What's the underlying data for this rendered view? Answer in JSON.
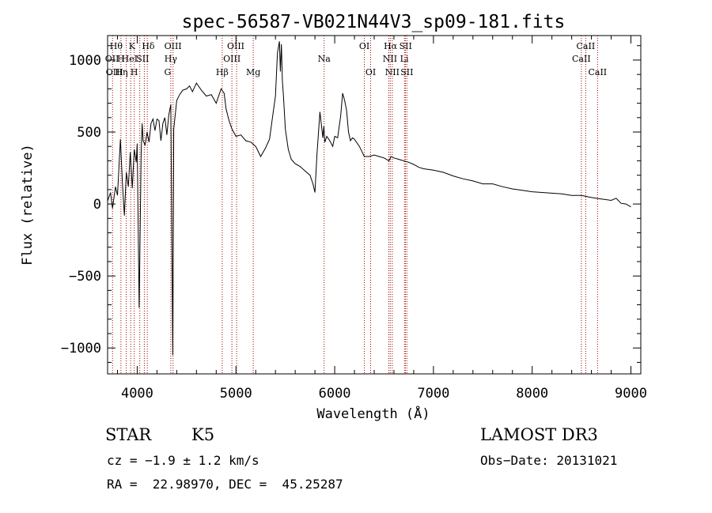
{
  "chart_data": {
    "type": "line",
    "title": "spec-56587-VB021N44V3_sp09-181.fits",
    "xlabel": "Wavelength (Å)",
    "ylabel": "Flux (relative)",
    "xlim": [
      3700,
      9100
    ],
    "ylim": [
      -1180,
      1170
    ],
    "x_ticks": [
      4000,
      5000,
      6000,
      7000,
      8000,
      9000
    ],
    "x_tick_labels": [
      "4000",
      "5000",
      "6000",
      "7000",
      "8000",
      "9000"
    ],
    "y_ticks": [
      -1000,
      -500,
      0,
      500,
      1000
    ],
    "y_tick_labels": [
      "−1000",
      "−500",
      "0",
      "500",
      "1000"
    ],
    "x_minor_step": 200,
    "y_minor_step": 100,
    "series": [
      {
        "name": "flux",
        "x": [
          3700,
          3730,
          3750,
          3780,
          3800,
          3830,
          3850,
          3870,
          3890,
          3910,
          3930,
          3950,
          3970,
          3990,
          4000,
          4020,
          4040,
          4050,
          4060,
          4080,
          4100,
          4120,
          4140,
          4160,
          4180,
          4200,
          4220,
          4240,
          4260,
          4280,
          4300,
          4320,
          4340,
          4360,
          4370,
          4400,
          4430,
          4460,
          4500,
          4530,
          4560,
          4600,
          4650,
          4700,
          4750,
          4800,
          4850,
          4880,
          4900,
          4930,
          4960,
          5000,
          5050,
          5100,
          5150,
          5200,
          5250,
          5300,
          5340,
          5370,
          5400,
          5420,
          5440,
          5450,
          5460,
          5470,
          5480,
          5500,
          5530,
          5560,
          5600,
          5650,
          5700,
          5750,
          5780,
          5800,
          5820,
          5850,
          5880,
          5890,
          5900,
          5920,
          5950,
          5980,
          6000,
          6030,
          6060,
          6080,
          6100,
          6120,
          6140,
          6160,
          6180,
          6200,
          6250,
          6300,
          6350,
          6400,
          6450,
          6500,
          6550,
          6570,
          6600,
          6650,
          6700,
          6750,
          6800,
          6850,
          6900,
          6950,
          7000,
          7100,
          7200,
          7300,
          7400,
          7500,
          7600,
          7700,
          7800,
          7900,
          8000,
          8100,
          8200,
          8300,
          8400,
          8500,
          8600,
          8700,
          8800,
          8850,
          8900,
          8950,
          9000
        ],
        "y": [
          20,
          80,
          -30,
          120,
          60,
          450,
          150,
          -80,
          220,
          120,
          360,
          110,
          380,
          290,
          420,
          -720,
          350,
          560,
          440,
          410,
          500,
          430,
          560,
          590,
          510,
          590,
          580,
          440,
          560,
          600,
          480,
          620,
          690,
          -1050,
          520,
          720,
          760,
          790,
          800,
          820,
          780,
          840,
          790,
          750,
          760,
          700,
          800,
          770,
          660,
          580,
          520,
          470,
          480,
          440,
          430,
          400,
          330,
          390,
          450,
          600,
          750,
          1050,
          1130,
          920,
          1110,
          860,
          760,
          520,
          380,
          310,
          280,
          260,
          230,
          200,
          140,
          80,
          340,
          640,
          460,
          540,
          430,
          470,
          440,
          400,
          470,
          460,
          610,
          770,
          720,
          650,
          500,
          440,
          460,
          450,
          400,
          330,
          330,
          340,
          330,
          320,
          300,
          330,
          320,
          310,
          300,
          290,
          275,
          255,
          245,
          240,
          235,
          220,
          195,
          175,
          160,
          140,
          140,
          120,
          105,
          95,
          85,
          80,
          75,
          70,
          60,
          60,
          45,
          35,
          25,
          40,
          5,
          0,
          -20
        ]
      }
    ],
    "line_groups": [
      {
        "color": "#a00000",
        "x": [
          3750,
          3835,
          3889,
          3934,
          3970,
          4026,
          4072,
          4102,
          4340,
          4363,
          4861,
          4959,
          5007,
          5175,
          5893,
          6300,
          6364,
          6548,
          6563,
          6583,
          6707,
          6716,
          6731,
          8498,
          8542,
          8662
        ]
      }
    ],
    "line_labels": [
      {
        "text": "Hθ",
        "x": 3787,
        "row": 1
      },
      {
        "text": "K",
        "x": 3947,
        "row": 1
      },
      {
        "text": "Hδ",
        "x": 4112,
        "row": 1
      },
      {
        "text": "OIII",
        "x": 4362,
        "row": 1
      },
      {
        "text": "OIII",
        "x": 4998,
        "row": 1
      },
      {
        "text": "OI",
        "x": 6300,
        "row": 1
      },
      {
        "text": "Hα",
        "x": 6565,
        "row": 1
      },
      {
        "text": "SII",
        "x": 6718,
        "row": 1
      },
      {
        "text": "CaII",
        "x": 8542,
        "row": 1
      },
      {
        "text": "OII",
        "x": 3745,
        "row": 2
      },
      {
        "text": "H",
        "x": 3835,
        "row": 2
      },
      {
        "text": "HeI",
        "x": 3923,
        "row": 2
      },
      {
        "text": "SII",
        "x": 4055,
        "row": 2
      },
      {
        "text": "Hγ",
        "x": 4340,
        "row": 2
      },
      {
        "text": "OIII",
        "x": 4959,
        "row": 2
      },
      {
        "text": "Na",
        "x": 5893,
        "row": 2
      },
      {
        "text": "NII",
        "x": 6560,
        "row": 2
      },
      {
        "text": "Li",
        "x": 6705,
        "row": 2
      },
      {
        "text": "CaII",
        "x": 8498,
        "row": 2
      },
      {
        "text": "OIII",
        "x": 3770,
        "row": 3
      },
      {
        "text": "Hη",
        "x": 3840,
        "row": 3
      },
      {
        "text": "H",
        "x": 3970,
        "row": 3
      },
      {
        "text": "G",
        "x": 4308,
        "row": 3
      },
      {
        "text": "Hβ",
        "x": 4861,
        "row": 3
      },
      {
        "text": "Mg",
        "x": 5175,
        "row": 3
      },
      {
        "text": "OI",
        "x": 6364,
        "row": 3
      },
      {
        "text": "NII",
        "x": 6583,
        "row": 3
      },
      {
        "text": "SII",
        "x": 6731,
        "row": 3
      },
      {
        "text": "CaII",
        "x": 8662,
        "row": 3
      }
    ]
  },
  "info": {
    "class": "STAR",
    "subclass": "K5",
    "survey": "LAMOST DR3",
    "redshift": "cz = −1.9 ± 1.2 km/s",
    "obs_date": "Obs−Date: 20131021",
    "coords": "RA =  22.98970, DEC =  45.25287"
  }
}
